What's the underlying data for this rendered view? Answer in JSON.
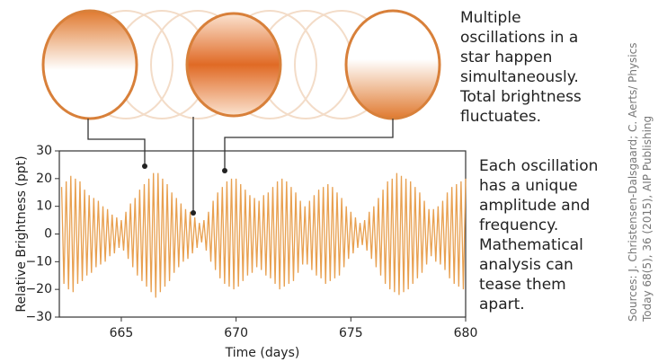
{
  "chart_data": {
    "type": "line",
    "annotations": [
      {
        "lines": [
          "Multiple",
          "oscillations in a",
          "star happen",
          "simultaneously.",
          "Total brightness",
          "fluctuates."
        ]
      },
      {
        "lines": [
          "Each oscillation",
          "has a unique",
          "amplitude and",
          "frequency.",
          "Mathematical",
          "analysis can",
          "tease them",
          "apart."
        ]
      }
    ],
    "source": [
      "Sources: J. Christensen-Dalsgaard; C. Aerts/ Physics",
      "Today 68(5), 36 (2015), AIP Publishing"
    ],
    "xlabel": "Time (days)",
    "ylabel": "Relative Brightness (ppt)",
    "xlim": [
      662.3,
      680
    ],
    "xticks": [
      665,
      670,
      675,
      680
    ],
    "ylim": [
      -30,
      30
    ],
    "yticks": [
      {
        "value": -30,
        "label": "−30"
      },
      {
        "value": -20,
        "label": "−20"
      },
      {
        "value": -10,
        "label": "−10"
      },
      0,
      10,
      20,
      30
    ],
    "color": "#e8a050",
    "x": [
      662.4,
      662.5,
      662.6,
      662.7,
      662.8,
      662.9,
      663.0,
      663.1,
      663.2,
      663.3,
      663.4,
      663.5,
      663.6,
      663.7,
      663.8,
      663.9,
      664.0,
      664.1,
      664.2,
      664.3,
      664.4,
      664.5,
      664.6,
      664.7,
      664.8,
      664.9,
      665.0,
      665.1,
      665.2,
      665.3,
      665.4,
      665.5,
      665.6,
      665.7,
      665.8,
      665.9,
      666.0,
      666.1,
      666.2,
      666.3,
      666.4,
      666.5,
      666.6,
      666.7,
      666.8,
      666.9,
      667.0,
      667.1,
      667.2,
      667.3,
      667.4,
      667.5,
      667.6,
      667.7,
      667.8,
      667.9,
      668.0,
      668.1,
      668.2,
      668.3,
      668.4,
      668.5,
      668.6,
      668.7,
      668.8,
      668.9,
      669.0,
      669.1,
      669.2,
      669.3,
      669.4,
      669.5,
      669.6,
      669.7,
      669.8,
      669.9,
      670.0,
      670.1,
      670.2,
      670.3,
      670.4,
      670.5,
      670.6,
      670.7,
      670.8,
      670.9,
      671.0,
      671.1,
      671.2,
      671.3,
      671.4,
      671.5,
      671.6,
      671.7,
      671.8,
      671.9,
      672.0,
      672.1,
      672.2,
      672.3,
      672.4,
      672.5,
      672.6,
      672.7,
      672.8,
      672.9,
      673.0,
      673.1,
      673.2,
      673.3,
      673.4,
      673.5,
      673.6,
      673.7,
      673.8,
      673.9,
      674.0,
      674.1,
      674.2,
      674.3,
      674.4,
      674.5,
      674.6,
      674.7,
      674.8,
      674.9,
      675.0,
      675.1,
      675.2,
      675.3,
      675.4,
      675.5,
      675.6,
      675.7,
      675.8,
      675.9,
      676.0,
      676.1,
      676.2,
      676.3,
      676.4,
      676.5,
      676.6,
      676.7,
      676.8,
      676.9,
      677.0,
      677.1,
      677.2,
      677.3,
      677.4,
      677.5,
      677.6,
      677.7,
      677.8,
      677.9,
      678.0,
      678.1,
      678.2,
      678.3,
      678.4,
      678.5,
      678.6,
      678.7,
      678.8,
      678.9,
      679.0,
      679.1,
      679.2,
      679.3,
      679.4,
      679.5,
      679.6,
      679.7,
      679.8,
      679.9,
      680.0
    ],
    "values": [
      17,
      -18,
      19,
      -20,
      21,
      -21,
      20,
      -18,
      19,
      -17,
      16,
      -15,
      14,
      -14,
      13,
      -12,
      12,
      -11,
      10,
      -10,
      9,
      -8,
      7,
      -7,
      6,
      -5,
      5,
      -6,
      8,
      -9,
      11,
      -12,
      13,
      -15,
      16,
      -17,
      18,
      -19,
      20,
      -21,
      22,
      -23,
      22,
      -21,
      20,
      -19,
      18,
      -17,
      15,
      -14,
      13,
      -12,
      11,
      -10,
      9,
      -9,
      8,
      -7,
      6,
      -5,
      4,
      -3,
      5,
      -6,
      8,
      -10,
      12,
      -13,
      15,
      -16,
      17,
      -18,
      19,
      -19,
      20,
      -20,
      20,
      -19,
      18,
      -17,
      16,
      -15,
      14,
      -14,
      13,
      -12,
      12,
      -13,
      14,
      -15,
      15,
      -16,
      17,
      -18,
      19,
      -20,
      20,
      -19,
      19,
      -18,
      17,
      -17,
      15,
      -14,
      12,
      -11,
      10,
      -11,
      12,
      -13,
      14,
      -15,
      16,
      -16,
      17,
      -18,
      18,
      -17,
      17,
      -16,
      15,
      -15,
      13,
      -12,
      10,
      -9,
      8,
      -7,
      6,
      -5,
      4,
      -4,
      5,
      -6,
      8,
      -9,
      10,
      -12,
      13,
      -15,
      16,
      -18,
      19,
      -20,
      20,
      -21,
      22,
      -22,
      21,
      -21,
      20,
      -20,
      19,
      -18,
      17,
      -16,
      15,
      -14,
      12,
      -11,
      9,
      -8,
      9,
      -10,
      10,
      -11,
      12,
      -13,
      15,
      -16,
      17,
      -18,
      18,
      -19,
      19,
      -20,
      20
    ]
  }
}
